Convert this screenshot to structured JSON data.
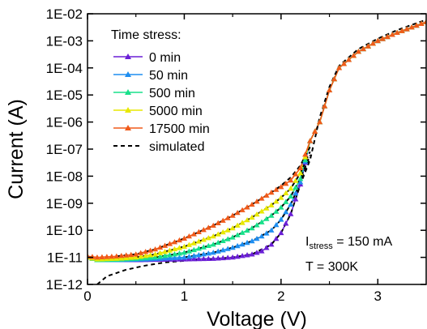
{
  "chart_data": {
    "type": "line",
    "xlabel": "Voltage (V)",
    "ylabel": "Current (A)",
    "xlim": [
      0,
      3.5
    ],
    "ylim_exponent": [
      -12,
      -2
    ],
    "yscale": "log",
    "x_ticks": [
      "0",
      "1",
      "2",
      "3"
    ],
    "y_ticks": [
      "1E-12",
      "1E-11",
      "1E-10",
      "1E-09",
      "1E-08",
      "1E-07",
      "1E-06",
      "1E-05",
      "1E-04",
      "1E-03",
      "1E-02"
    ],
    "legend_title": "Time stress:",
    "legend_position": "top-left",
    "series": [
      {
        "name": "0 min",
        "color": "#6a1fd6",
        "x": [
          0,
          0.1,
          0.3,
          0.5,
          0.7,
          1.0,
          1.3,
          1.5,
          1.7,
          1.8,
          1.9,
          2.0,
          2.1,
          2.2,
          2.3,
          2.4,
          2.5,
          2.6,
          2.8,
          3.0,
          3.2,
          3.5
        ],
        "y": [
          "1.0E-11",
          "8.0E-12",
          "8.0E-12",
          "8.0E-12",
          "8.2E-12",
          "8.5E-12",
          "9.0E-12",
          "1.0E-11",
          "1.3E-11",
          "1.7E-11",
          "3.0E-11",
          "8.0E-11",
          "4.0E-10",
          "5.0E-09",
          "2.0E-07",
          "1.0E-06",
          "1.5E-05",
          "1.0E-04",
          "4.0E-04",
          "1.0E-03",
          "2.0E-03",
          "5.0E-03"
        ]
      },
      {
        "name": "50 min",
        "color": "#1e8ef0",
        "x": [
          0,
          0.1,
          0.3,
          0.5,
          0.7,
          1.0,
          1.3,
          1.5,
          1.7,
          1.8,
          1.9,
          2.0,
          2.1,
          2.2,
          2.3,
          2.4,
          2.5,
          2.6,
          2.8,
          3.0,
          3.2,
          3.5
        ],
        "y": [
          "1.0E-11",
          "8.0E-12",
          "8.0E-12",
          "8.3E-12",
          "8.8E-12",
          "1.0E-11",
          "1.5E-11",
          "2.3E-11",
          "4.0E-11",
          "6.0E-11",
          "1.0E-10",
          "2.5E-10",
          "9.0E-10",
          "6.0E-09",
          "2.0E-07",
          "1.0E-06",
          "1.5E-05",
          "1.0E-04",
          "4.0E-04",
          "1.0E-03",
          "2.0E-03",
          "5.0E-03"
        ]
      },
      {
        "name": "500 min",
        "color": "#18e08a",
        "x": [
          0,
          0.1,
          0.3,
          0.5,
          0.7,
          1.0,
          1.3,
          1.5,
          1.7,
          1.8,
          1.9,
          2.0,
          2.1,
          2.2,
          2.3,
          2.4,
          2.5,
          2.6,
          2.8,
          3.0,
          3.2,
          3.5
        ],
        "y": [
          "1.0E-11",
          "8.0E-12",
          "8.3E-12",
          "9.0E-12",
          "1.0E-11",
          "1.5E-11",
          "3.0E-11",
          "5.5E-11",
          "1.2E-10",
          "2.0E-10",
          "3.5E-10",
          "7.0E-10",
          "1.8E-09",
          "8.0E-09",
          "2.0E-07",
          "1.0E-06",
          "1.5E-05",
          "1.0E-04",
          "4.0E-04",
          "1.0E-03",
          "2.0E-03",
          "5.0E-03"
        ]
      },
      {
        "name": "5000 min",
        "color": "#e8e800",
        "x": [
          0,
          0.1,
          0.3,
          0.5,
          0.7,
          1.0,
          1.3,
          1.5,
          1.7,
          1.8,
          1.9,
          2.0,
          2.1,
          2.2,
          2.3,
          2.4,
          2.5,
          2.6,
          2.8,
          3.0,
          3.2,
          3.5
        ],
        "y": [
          "1.0E-11",
          "8.5E-12",
          "9.0E-12",
          "1.0E-11",
          "1.3E-11",
          "2.5E-11",
          "6.0E-11",
          "1.2E-10",
          "3.0E-10",
          "5.0E-10",
          "8.5E-10",
          "1.6E-09",
          "3.5E-09",
          "1.3E-08",
          "2.0E-07",
          "1.0E-06",
          "1.5E-05",
          "1.0E-04",
          "4.0E-04",
          "1.0E-03",
          "2.0E-03",
          "5.0E-03"
        ]
      },
      {
        "name": "17500 min",
        "color": "#f05a1a",
        "x": [
          0,
          0.1,
          0.3,
          0.5,
          0.7,
          1.0,
          1.3,
          1.5,
          1.7,
          1.8,
          1.9,
          2.0,
          2.1,
          2.2,
          2.3,
          2.4,
          2.5,
          2.6,
          2.8,
          3.0,
          3.2,
          3.5
        ],
        "y": [
          "1.1E-11",
          "1.0E-11",
          "1.1E-11",
          "1.3E-11",
          "2.0E-11",
          "5.0E-11",
          "1.5E-10",
          "3.5E-10",
          "9.0E-10",
          "1.5E-09",
          "2.5E-09",
          "4.0E-09",
          "7.0E-09",
          "2.0E-08",
          "2.0E-07",
          "1.0E-06",
          "1.5E-05",
          "1.0E-04",
          "4.0E-04",
          "1.0E-03",
          "2.0E-03",
          "5.0E-03"
        ]
      }
    ],
    "simulated": {
      "name": "simulated",
      "color": "#000000",
      "dashed": true,
      "curves": [
        {
          "x": [
            0.1,
            0.2,
            0.4,
            0.6,
            0.8,
            1.0,
            1.3,
            1.5,
            1.7,
            1.9,
            2.0,
            2.1,
            2.2,
            2.3,
            2.4,
            2.5,
            2.6,
            2.8,
            3.0,
            3.2,
            3.5
          ],
          "y": [
            "1.0E-12",
            "2.0E-12",
            "3.5E-12",
            "5.0E-12",
            "6.5E-12",
            "7.5E-12",
            "8.5E-12",
            "1.0E-11",
            "1.3E-11",
            "3.0E-11",
            "8.0E-11",
            "4.0E-10",
            "5.0E-09",
            "4.0E-08",
            "1.5E-06",
            "2.0E-05",
            "1.2E-04",
            "5.0E-04",
            "1.2E-03",
            "2.5E-03",
            "6.0E-03"
          ]
        },
        {
          "x": [
            1.0,
            1.3,
            1.5,
            1.7,
            1.9,
            2.0,
            2.1,
            2.2,
            2.3
          ],
          "y": [
            "1.0E-11",
            "1.5E-11",
            "2.3E-11",
            "4.0E-11",
            "1.0E-10",
            "2.5E-10",
            "9.0E-10",
            "6.0E-09",
            "5.0E-08"
          ]
        },
        {
          "x": [
            0.7,
            1.0,
            1.3,
            1.5,
            1.7,
            1.9,
            2.0,
            2.1,
            2.2,
            2.3
          ],
          "y": [
            "1.0E-11",
            "1.5E-11",
            "3.0E-11",
            "5.5E-11",
            "1.2E-10",
            "3.5E-10",
            "7.0E-10",
            "1.8E-09",
            "8.0E-09",
            "6.0E-08"
          ]
        },
        {
          "x": [
            0.5,
            0.7,
            1.0,
            1.3,
            1.5,
            1.7,
            1.9,
            2.0,
            2.1,
            2.2,
            2.3
          ],
          "y": [
            "1.0E-11",
            "1.3E-11",
            "2.5E-11",
            "6.0E-11",
            "1.2E-10",
            "3.0E-10",
            "8.5E-10",
            "1.6E-09",
            "3.5E-09",
            "1.3E-08",
            "8.0E-08"
          ]
        },
        {
          "x": [
            0.3,
            0.5,
            0.7,
            1.0,
            1.3,
            1.5,
            1.7,
            1.9,
            2.0,
            2.1,
            2.2,
            2.3
          ],
          "y": [
            "1.1E-11",
            "1.3E-11",
            "2.0E-11",
            "5.0E-11",
            "1.5E-10",
            "3.5E-10",
            "9.0E-10",
            "2.5E-09",
            "4.5E-09",
            "9.0E-09",
            "2.5E-08",
            "1.2E-07"
          ]
        }
      ]
    },
    "annotation": {
      "line1_main": "I",
      "line1_sub": "stress",
      "line1_rest": " = 150 mA",
      "line2": "T = 300K"
    },
    "grid": false
  }
}
